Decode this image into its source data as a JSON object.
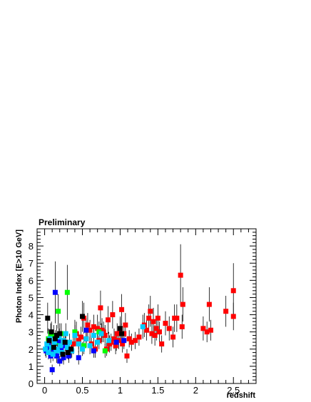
{
  "chart_data": {
    "type": "scatter",
    "title": "Preliminary",
    "xlabel": "redshift",
    "ylabel": "Photon Index [E>10 GeV]",
    "xlim": [
      -0.1,
      2.8
    ],
    "ylim": [
      0,
      9
    ],
    "xticks": [
      0,
      0.5,
      1,
      1.5,
      2,
      2.5
    ],
    "xtick_labels": [
      "0",
      "0.5",
      "1",
      "1.5",
      "2",
      "2.5"
    ],
    "yticks": [
      0,
      1,
      2,
      3,
      4,
      5,
      6,
      7,
      8
    ],
    "ytick_labels": [
      "0",
      "1",
      "2",
      "3",
      "4",
      "5",
      "6",
      "7",
      "8"
    ],
    "grid": false,
    "legend": "none",
    "error_bars": true,
    "marker": "square",
    "series": [
      {
        "color": "#ff0000",
        "points": [
          {
            "x": 0.38,
            "y": 2.3,
            "err": 0.6
          },
          {
            "x": 0.42,
            "y": 2.9,
            "err": 0.7
          },
          {
            "x": 0.45,
            "y": 2.5,
            "err": 0.5
          },
          {
            "x": 0.48,
            "y": 2.7,
            "err": 0.6
          },
          {
            "x": 0.52,
            "y": 3.8,
            "err": 0.9
          },
          {
            "x": 0.55,
            "y": 2.6,
            "err": 0.5
          },
          {
            "x": 0.57,
            "y": 3.4,
            "err": 0.7
          },
          {
            "x": 0.6,
            "y": 3.1,
            "err": 0.6
          },
          {
            "x": 0.62,
            "y": 2.3,
            "err": 0.5
          },
          {
            "x": 0.65,
            "y": 3.3,
            "err": 0.7
          },
          {
            "x": 0.67,
            "y": 2.0,
            "err": 0.5
          },
          {
            "x": 0.7,
            "y": 3.2,
            "err": 0.8
          },
          {
            "x": 0.72,
            "y": 2.5,
            "err": 0.5
          },
          {
            "x": 0.74,
            "y": 4.4,
            "err": 1.0
          },
          {
            "x": 0.76,
            "y": 3.1,
            "err": 0.7
          },
          {
            "x": 0.78,
            "y": 3.0,
            "err": 0.6
          },
          {
            "x": 0.8,
            "y": 2.8,
            "err": 0.6
          },
          {
            "x": 0.82,
            "y": 2.0,
            "err": 0.4
          },
          {
            "x": 0.84,
            "y": 3.7,
            "err": 0.8
          },
          {
            "x": 0.86,
            "y": 2.3,
            "err": 0.5
          },
          {
            "x": 0.88,
            "y": 2.4,
            "err": 0.5
          },
          {
            "x": 0.9,
            "y": 4.0,
            "err": 0.8
          },
          {
            "x": 0.92,
            "y": 2.6,
            "err": 0.6
          },
          {
            "x": 0.94,
            "y": 2.2,
            "err": 0.5
          },
          {
            "x": 0.96,
            "y": 2.9,
            "err": 0.6
          },
          {
            "x": 0.98,
            "y": 2.5,
            "err": 0.5
          },
          {
            "x": 1.0,
            "y": 3.1,
            "err": 0.7
          },
          {
            "x": 1.02,
            "y": 4.3,
            "err": 0.9
          },
          {
            "x": 1.03,
            "y": 2.3,
            "err": 0.5
          },
          {
            "x": 1.05,
            "y": 2.9,
            "err": 0.6
          },
          {
            "x": 1.07,
            "y": 3.4,
            "err": 0.7
          },
          {
            "x": 1.09,
            "y": 1.6,
            "err": 0.4
          },
          {
            "x": 1.12,
            "y": 2.6,
            "err": 0.5
          },
          {
            "x": 1.15,
            "y": 2.4,
            "err": 0.5
          },
          {
            "x": 1.2,
            "y": 2.5,
            "err": 0.5
          },
          {
            "x": 1.25,
            "y": 2.7,
            "err": 0.5
          },
          {
            "x": 1.32,
            "y": 3.4,
            "err": 0.7
          },
          {
            "x": 1.35,
            "y": 3.1,
            "err": 0.6
          },
          {
            "x": 1.38,
            "y": 3.8,
            "err": 0.8
          },
          {
            "x": 1.4,
            "y": 4.2,
            "err": 0.9
          },
          {
            "x": 1.42,
            "y": 2.9,
            "err": 0.6
          },
          {
            "x": 1.44,
            "y": 3.6,
            "err": 0.8
          },
          {
            "x": 1.46,
            "y": 2.8,
            "err": 0.6
          },
          {
            "x": 1.48,
            "y": 3.2,
            "err": 0.7
          },
          {
            "x": 1.5,
            "y": 3.8,
            "err": 0.8
          },
          {
            "x": 1.52,
            "y": 3.0,
            "err": 0.6
          },
          {
            "x": 1.55,
            "y": 2.3,
            "err": 0.5
          },
          {
            "x": 1.6,
            "y": 3.5,
            "err": 0.7
          },
          {
            "x": 1.65,
            "y": 3.2,
            "err": 0.7
          },
          {
            "x": 1.7,
            "y": 2.7,
            "err": 0.6
          },
          {
            "x": 1.72,
            "y": 3.8,
            "err": 0.8
          },
          {
            "x": 1.75,
            "y": 3.8,
            "err": 0.8
          },
          {
            "x": 1.8,
            "y": 6.3,
            "err": 1.8
          },
          {
            "x": 1.82,
            "y": 3.3,
            "err": 0.7
          },
          {
            "x": 1.83,
            "y": 4.6,
            "err": 1.0
          },
          {
            "x": 2.1,
            "y": 3.2,
            "err": 0.7
          },
          {
            "x": 2.15,
            "y": 3.0,
            "err": 0.6
          },
          {
            "x": 2.18,
            "y": 4.6,
            "err": 1.0
          },
          {
            "x": 2.2,
            "y": 3.1,
            "err": 0.6
          },
          {
            "x": 2.4,
            "y": 4.2,
            "err": 0.9
          },
          {
            "x": 2.5,
            "y": 5.4,
            "err": 1.6
          },
          {
            "x": 2.5,
            "y": 3.9,
            "err": 0.8
          }
        ]
      },
      {
        "color": "#00ff00",
        "points": [
          {
            "x": 0.05,
            "y": 2.6,
            "err": 0.6
          },
          {
            "x": 0.08,
            "y": 2.9,
            "err": 0.6
          },
          {
            "x": 0.12,
            "y": 2.8,
            "err": 0.6
          },
          {
            "x": 0.15,
            "y": 2.4,
            "err": 0.5
          },
          {
            "x": 0.18,
            "y": 4.2,
            "err": 1.0
          },
          {
            "x": 0.22,
            "y": 2.9,
            "err": 0.6
          },
          {
            "x": 0.3,
            "y": 5.3,
            "err": 1.6
          },
          {
            "x": 0.4,
            "y": 3.0,
            "err": 0.7
          },
          {
            "x": 0.52,
            "y": 2.2,
            "err": 0.5
          },
          {
            "x": 0.72,
            "y": 3.0,
            "err": 0.6
          },
          {
            "x": 0.8,
            "y": 1.9,
            "err": 0.4
          }
        ]
      },
      {
        "color": "#0000ff",
        "points": [
          {
            "x": 0.02,
            "y": 1.9,
            "err": 0.4
          },
          {
            "x": 0.05,
            "y": 2.2,
            "err": 0.5
          },
          {
            "x": 0.08,
            "y": 1.6,
            "err": 0.4
          },
          {
            "x": 0.1,
            "y": 0.8,
            "err": 0.3
          },
          {
            "x": 0.12,
            "y": 2.0,
            "err": 0.4
          },
          {
            "x": 0.14,
            "y": 5.3,
            "err": 1.8
          },
          {
            "x": 0.16,
            "y": 1.6,
            "err": 0.4
          },
          {
            "x": 0.18,
            "y": 2.5,
            "err": 0.5
          },
          {
            "x": 0.2,
            "y": 1.3,
            "err": 0.3
          },
          {
            "x": 0.22,
            "y": 2.0,
            "err": 0.4
          },
          {
            "x": 0.25,
            "y": 1.5,
            "err": 0.4
          },
          {
            "x": 0.28,
            "y": 2.2,
            "err": 0.5
          },
          {
            "x": 0.32,
            "y": 1.6,
            "err": 0.4
          },
          {
            "x": 0.45,
            "y": 1.5,
            "err": 0.4
          },
          {
            "x": 0.55,
            "y": 3.1,
            "err": 0.7
          },
          {
            "x": 0.65,
            "y": 1.9,
            "err": 0.4
          },
          {
            "x": 0.95,
            "y": 2.4,
            "err": 0.5
          },
          {
            "x": 1.05,
            "y": 2.5,
            "err": 0.5
          }
        ]
      },
      {
        "color": "#00ccff",
        "points": [
          {
            "x": 0.01,
            "y": 2.0,
            "err": 0.4
          },
          {
            "x": 0.03,
            "y": 2.3,
            "err": 0.4
          },
          {
            "x": 0.05,
            "y": 1.8,
            "err": 0.4
          },
          {
            "x": 0.07,
            "y": 2.6,
            "err": 0.5
          },
          {
            "x": 0.09,
            "y": 2.1,
            "err": 0.4
          },
          {
            "x": 0.11,
            "y": 1.7,
            "err": 0.4
          },
          {
            "x": 0.13,
            "y": 2.4,
            "err": 0.5
          },
          {
            "x": 0.15,
            "y": 2.0,
            "err": 0.4
          },
          {
            "x": 0.17,
            "y": 1.9,
            "err": 0.4
          },
          {
            "x": 0.19,
            "y": 2.7,
            "err": 0.5
          },
          {
            "x": 0.21,
            "y": 2.2,
            "err": 0.4
          },
          {
            "x": 0.23,
            "y": 1.8,
            "err": 0.4
          },
          {
            "x": 0.25,
            "y": 2.5,
            "err": 0.5
          },
          {
            "x": 0.28,
            "y": 2.9,
            "err": 0.6
          },
          {
            "x": 0.3,
            "y": 2.1,
            "err": 0.4
          },
          {
            "x": 0.33,
            "y": 2.4,
            "err": 0.5
          },
          {
            "x": 0.36,
            "y": 1.9,
            "err": 0.4
          },
          {
            "x": 0.4,
            "y": 2.8,
            "err": 0.6
          },
          {
            "x": 0.45,
            "y": 2.3,
            "err": 0.5
          },
          {
            "x": 0.5,
            "y": 2.0,
            "err": 0.4
          },
          {
            "x": 0.55,
            "y": 2.6,
            "err": 0.5
          },
          {
            "x": 0.6,
            "y": 2.2,
            "err": 0.5
          },
          {
            "x": 0.65,
            "y": 2.8,
            "err": 0.6
          },
          {
            "x": 0.7,
            "y": 2.4,
            "err": 0.5
          },
          {
            "x": 0.75,
            "y": 2.9,
            "err": 0.6
          },
          {
            "x": 0.85,
            "y": 2.5,
            "err": 0.5
          },
          {
            "x": 1.3,
            "y": 3.3,
            "err": 0.7
          }
        ]
      },
      {
        "color": "#000000",
        "points": [
          {
            "x": 0.04,
            "y": 3.8,
            "err": 0.9
          },
          {
            "x": 0.06,
            "y": 2.5,
            "err": 0.5
          },
          {
            "x": 0.09,
            "y": 3.0,
            "err": 0.6
          },
          {
            "x": 0.12,
            "y": 2.1,
            "err": 0.5
          },
          {
            "x": 0.14,
            "y": 2.6,
            "err": 0.5
          },
          {
            "x": 0.16,
            "y": 2.8,
            "err": 0.6
          },
          {
            "x": 0.2,
            "y": 2.9,
            "err": 0.6
          },
          {
            "x": 0.24,
            "y": 1.7,
            "err": 0.4
          },
          {
            "x": 0.27,
            "y": 2.4,
            "err": 0.5
          },
          {
            "x": 0.31,
            "y": 1.8,
            "err": 0.4
          },
          {
            "x": 0.35,
            "y": 2.0,
            "err": 0.4
          },
          {
            "x": 0.5,
            "y": 3.9,
            "err": 0.9
          },
          {
            "x": 1.0,
            "y": 3.2,
            "err": 0.7
          },
          {
            "x": 1.02,
            "y": 2.9,
            "err": 0.6
          }
        ]
      }
    ]
  }
}
